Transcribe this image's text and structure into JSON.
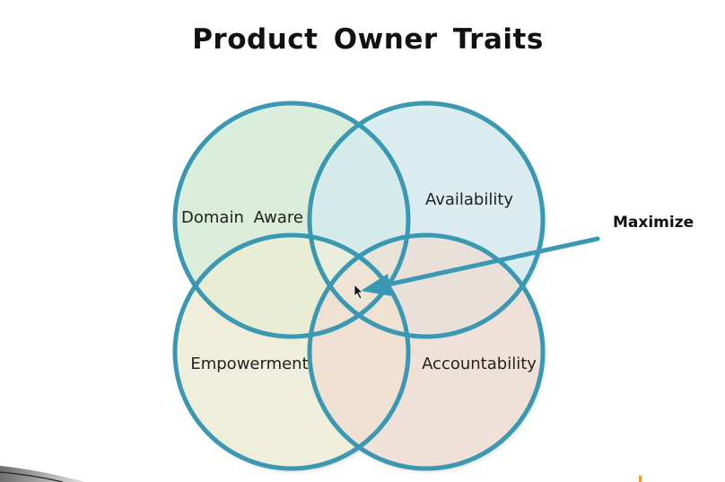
{
  "slide": {
    "title": "Product Owner Traits"
  },
  "venn": {
    "sets": [
      {
        "label": "Domain Aware",
        "fill": "#d3ecd3"
      },
      {
        "label": "Availability",
        "fill": "#d4ecf2"
      },
      {
        "label": "Empowerment",
        "fill": "#f1f0d2"
      },
      {
        "label": "Accountability",
        "fill": "#f2ddcf"
      }
    ],
    "stroke_color": "#3a98b3"
  },
  "callout": {
    "label": "Maximize",
    "arrow_color": "#3a98b3"
  }
}
